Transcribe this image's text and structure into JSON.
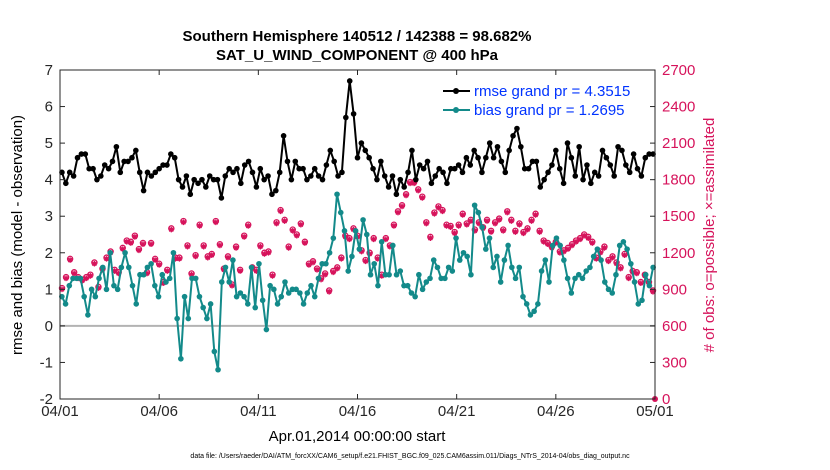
{
  "chart_data": {
    "type": "line",
    "title_line1": "Southern Hemisphere 140512 / 142388 = 98.682%",
    "title_line2": "SAT_U_WIND_COMPONENT @ 400 hPa",
    "xlabel": "Apr.01,2014 00:00:00 start",
    "ylabel_left": "rmse and bias (model - observation)",
    "ylabel_right": "# of obs: o=possible; ×=assimilated",
    "x_ticks": [
      "04/01",
      "04/06",
      "04/11",
      "04/16",
      "04/21",
      "04/26",
      "05/01"
    ],
    "y_left_ticks": [
      "-2",
      "-1",
      "0",
      "1",
      "2",
      "3",
      "4",
      "5",
      "6",
      "7"
    ],
    "y_right_ticks": [
      "0",
      "300",
      "600",
      "900",
      "1200",
      "1500",
      "1800",
      "2100",
      "2400",
      "2700"
    ],
    "ylim_left": [
      -2,
      7
    ],
    "ylim_right": [
      0,
      2700
    ],
    "xlim_days": [
      0,
      30
    ],
    "footer": "data file: /Users/raeder/DAI/ATM_forcXX/CAM6_setup/f.e21.FHIST_BGC.f09_025.CAM6assim.011/Diags_NTrS_2014-04/obs_diag_output.nc",
    "colors": {
      "rmse": "#000000",
      "bias": "#138a8a",
      "obs": "#d6135b",
      "legend_text": "#0033ff",
      "zero_line": "#b3b3b3"
    },
    "series": [
      {
        "name": "rmse grand pr = 4.3515",
        "values": [
          4.2,
          3.9,
          4.2,
          4.1,
          4.6,
          4.7,
          4.7,
          4.3,
          4.3,
          4.0,
          4.1,
          4.4,
          4.3,
          4.5,
          4.9,
          4.2,
          4.5,
          4.5,
          4.6,
          4.8,
          4.2,
          3.7,
          4.2,
          4.1,
          4.2,
          4.3,
          4.4,
          4.4,
          4.7,
          4.6,
          4.0,
          3.8,
          4.1,
          3.6,
          4.0,
          3.9,
          4.0,
          3.8,
          4.1,
          4.0,
          4.0,
          3.5,
          4.1,
          4.3,
          4.2,
          4.3,
          3.9,
          4.4,
          4.5,
          4.2,
          3.8,
          4.3,
          4.0,
          4.1,
          3.6,
          3.7,
          4.2,
          5.2,
          4.5,
          4.0,
          4.5,
          4.3,
          4.3,
          4.0,
          4.1,
          4.3,
          4.1,
          4.0,
          4.4,
          4.8,
          4.5,
          4.1,
          4.2,
          5.7,
          6.7,
          5.8,
          4.6,
          5.0,
          4.8,
          4.6,
          4.3,
          4.0,
          4.5,
          4.1,
          3.8,
          4.1,
          3.6,
          4.0,
          3.8,
          4.2,
          4.8,
          4.0,
          4.4,
          4.3,
          4.5,
          3.9,
          4.1,
          4.3,
          4.2,
          3.9,
          4.3,
          4.3,
          4.4,
          4.2,
          4.6,
          4.4,
          4.8,
          4.6,
          4.2,
          4.6,
          5.0,
          4.6,
          4.9,
          4.5,
          4.2,
          4.8,
          5.2,
          5.4,
          4.9,
          4.3,
          4.3,
          4.5,
          4.5,
          3.8,
          4.0,
          4.2,
          4.4,
          4.8,
          4.3,
          3.9,
          5.0,
          4.6,
          4.1,
          4.9,
          4.0,
          4.4,
          3.9,
          4.2,
          4.1,
          4.8,
          4.6,
          4.4,
          4.1,
          4.9,
          4.8,
          4.4,
          4.2,
          4.7,
          4.3,
          4.1,
          4.6,
          4.7,
          4.7
        ]
      },
      {
        "name": "bias grand pr = 1.2695",
        "values": [
          0.8,
          0.6,
          1.1,
          1.3,
          1.3,
          1.3,
          0.8,
          0.3,
          1.0,
          0.8,
          1.3,
          1.6,
          1.0,
          2.0,
          1.1,
          1.0,
          1.6,
          2.0,
          1.6,
          1.1,
          0.6,
          1.4,
          1.4,
          1.6,
          1.7,
          1.1,
          0.8,
          1.4,
          1.2,
          1.3,
          2.0,
          0.2,
          -0.9,
          0.8,
          0.2,
          1.3,
          1.3,
          0.8,
          0.5,
          0.2,
          0.6,
          -0.7,
          -1.2,
          1.2,
          1.6,
          1.2,
          1.8,
          0.8,
          0.9,
          0.8,
          0.6,
          1.6,
          0.5,
          1.7,
          0.7,
          -0.1,
          1.1,
          1.0,
          0.6,
          0.8,
          1.2,
          0.9,
          1.0,
          1.0,
          0.9,
          0.6,
          0.9,
          1.1,
          0.8,
          1.3,
          1.7,
          1.7,
          2.0,
          2.4,
          3.6,
          3.1,
          2.6,
          1.5,
          1.9,
          2.6,
          2.1,
          2.9,
          2.5,
          1.4,
          1.7,
          1.1,
          2.3,
          1.4,
          1.4,
          2.2,
          1.4,
          1.5,
          1.1,
          1.1,
          0.9,
          0.8,
          1.4,
          1.0,
          1.2,
          1.3,
          1.8,
          1.6,
          1.3,
          1.3,
          1.6,
          1.5,
          2.4,
          1.8,
          2.0,
          1.9,
          1.4,
          3.3,
          3.1,
          2.7,
          2.1,
          2.4,
          1.6,
          1.9,
          1.2,
          1.8,
          2.2,
          1.6,
          1.3,
          1.6,
          0.8,
          0.6,
          0.3,
          0.4,
          0.6,
          1.5,
          1.8,
          1.2,
          2.2,
          2.4,
          2.2,
          1.8,
          1.3,
          0.9,
          1.3,
          1.4,
          1.3,
          1.5,
          1.6,
          1.9,
          2.1,
          1.8,
          1.2,
          1.0,
          0.9,
          1.4,
          2.2,
          2.3,
          2.1,
          1.7,
          1.2,
          0.6,
          0.7,
          1.4,
          1.1,
          1.6
        ]
      }
    ],
    "obs_series": [
      {
        "name": "possible",
        "values": [
          910,
          1000,
          1150,
          1040,
          1000,
          980,
          1000,
          1020,
          1120,
          920,
          1070,
          1160,
          1210,
          1060,
          1040,
          1240,
          1300,
          1290,
          1340,
          1230,
          1280,
          1040,
          1280,
          1150,
          1110,
          960,
          1060,
          1400,
          1160,
          1160,
          1460,
          1260,
          1030,
          1180,
          1430,
          1260,
          1170,
          1190,
          1460,
          1270,
          1070,
          1170,
          940,
          1250,
          1060,
          1340,
          1430,
          1080,
          1060,
          1260,
          1200,
          1210,
          1020,
          1450,
          1550,
          1470,
          1250,
          1390,
          1350,
          1440,
          1290,
          1110,
          1130,
          1070,
          990,
          1030,
          890,
          1050,
          1080,
          1160,
          1340,
          1320,
          1400,
          1340,
          1220,
          1140,
          1200,
          1320,
          1160,
          1020,
          1320,
          1260,
          1430,
          1540,
          1590,
          1680,
          1780,
          1780,
          1720,
          1660,
          1450,
          1330,
          1530,
          1580,
          1550,
          1430,
          1420,
          1370,
          1430,
          1520,
          1440,
          1470,
          1390,
          1450,
          1410,
          1470,
          1380,
          1450,
          1480,
          1390,
          1540,
          1470,
          1380,
          1440,
          1370,
          1400,
          1470,
          1520,
          1380,
          1300,
          1280,
          1250,
          1290,
          1210,
          1220,
          1240,
          1270,
          1300,
          1320,
          1350,
          1330,
          1290,
          1160,
          1210,
          1250,
          1140,
          1170,
          1120,
          1080,
          1190,
          1000,
          1050,
          1040,
          960,
          1020,
          960,
          890
        ]
      },
      {
        "name": "assimilated",
        "values": [
          900,
          990,
          1140,
          1030,
          990,
          970,
          990,
          1010,
          1110,
          910,
          1060,
          1150,
          1200,
          1050,
          1030,
          1230,
          1290,
          1280,
          1330,
          1220,
          1270,
          1030,
          1270,
          1140,
          1100,
          950,
          1050,
          1390,
          1150,
          1150,
          1450,
          1250,
          1020,
          1170,
          1420,
          1250,
          1160,
          1180,
          1450,
          1260,
          1060,
          1160,
          930,
          1240,
          1050,
          1330,
          1420,
          1070,
          1050,
          1250,
          1190,
          1200,
          1010,
          1440,
          1540,
          1460,
          1240,
          1380,
          1340,
          1430,
          1280,
          1100,
          1120,
          1060,
          980,
          1020,
          880,
          1040,
          1070,
          1150,
          1330,
          1310,
          1390,
          1330,
          1210,
          1130,
          1190,
          1310,
          1150,
          1010,
          1310,
          1250,
          1420,
          1530,
          1580,
          1670,
          1770,
          1770,
          1710,
          1650,
          1440,
          1320,
          1520,
          1570,
          1540,
          1420,
          1410,
          1360,
          1420,
          1510,
          1430,
          1460,
          1380,
          1440,
          1400,
          1460,
          1370,
          1440,
          1470,
          1380,
          1530,
          1460,
          1370,
          1430,
          1360,
          1390,
          1460,
          1510,
          1370,
          1290,
          1270,
          1240,
          1280,
          1200,
          1210,
          1230,
          1260,
          1290,
          1310,
          1340,
          1320,
          1280,
          1150,
          1200,
          1240,
          1130,
          1160,
          1110,
          1070,
          1180,
          990,
          1040,
          1030,
          950,
          1010,
          950,
          880
        ]
      }
    ]
  }
}
